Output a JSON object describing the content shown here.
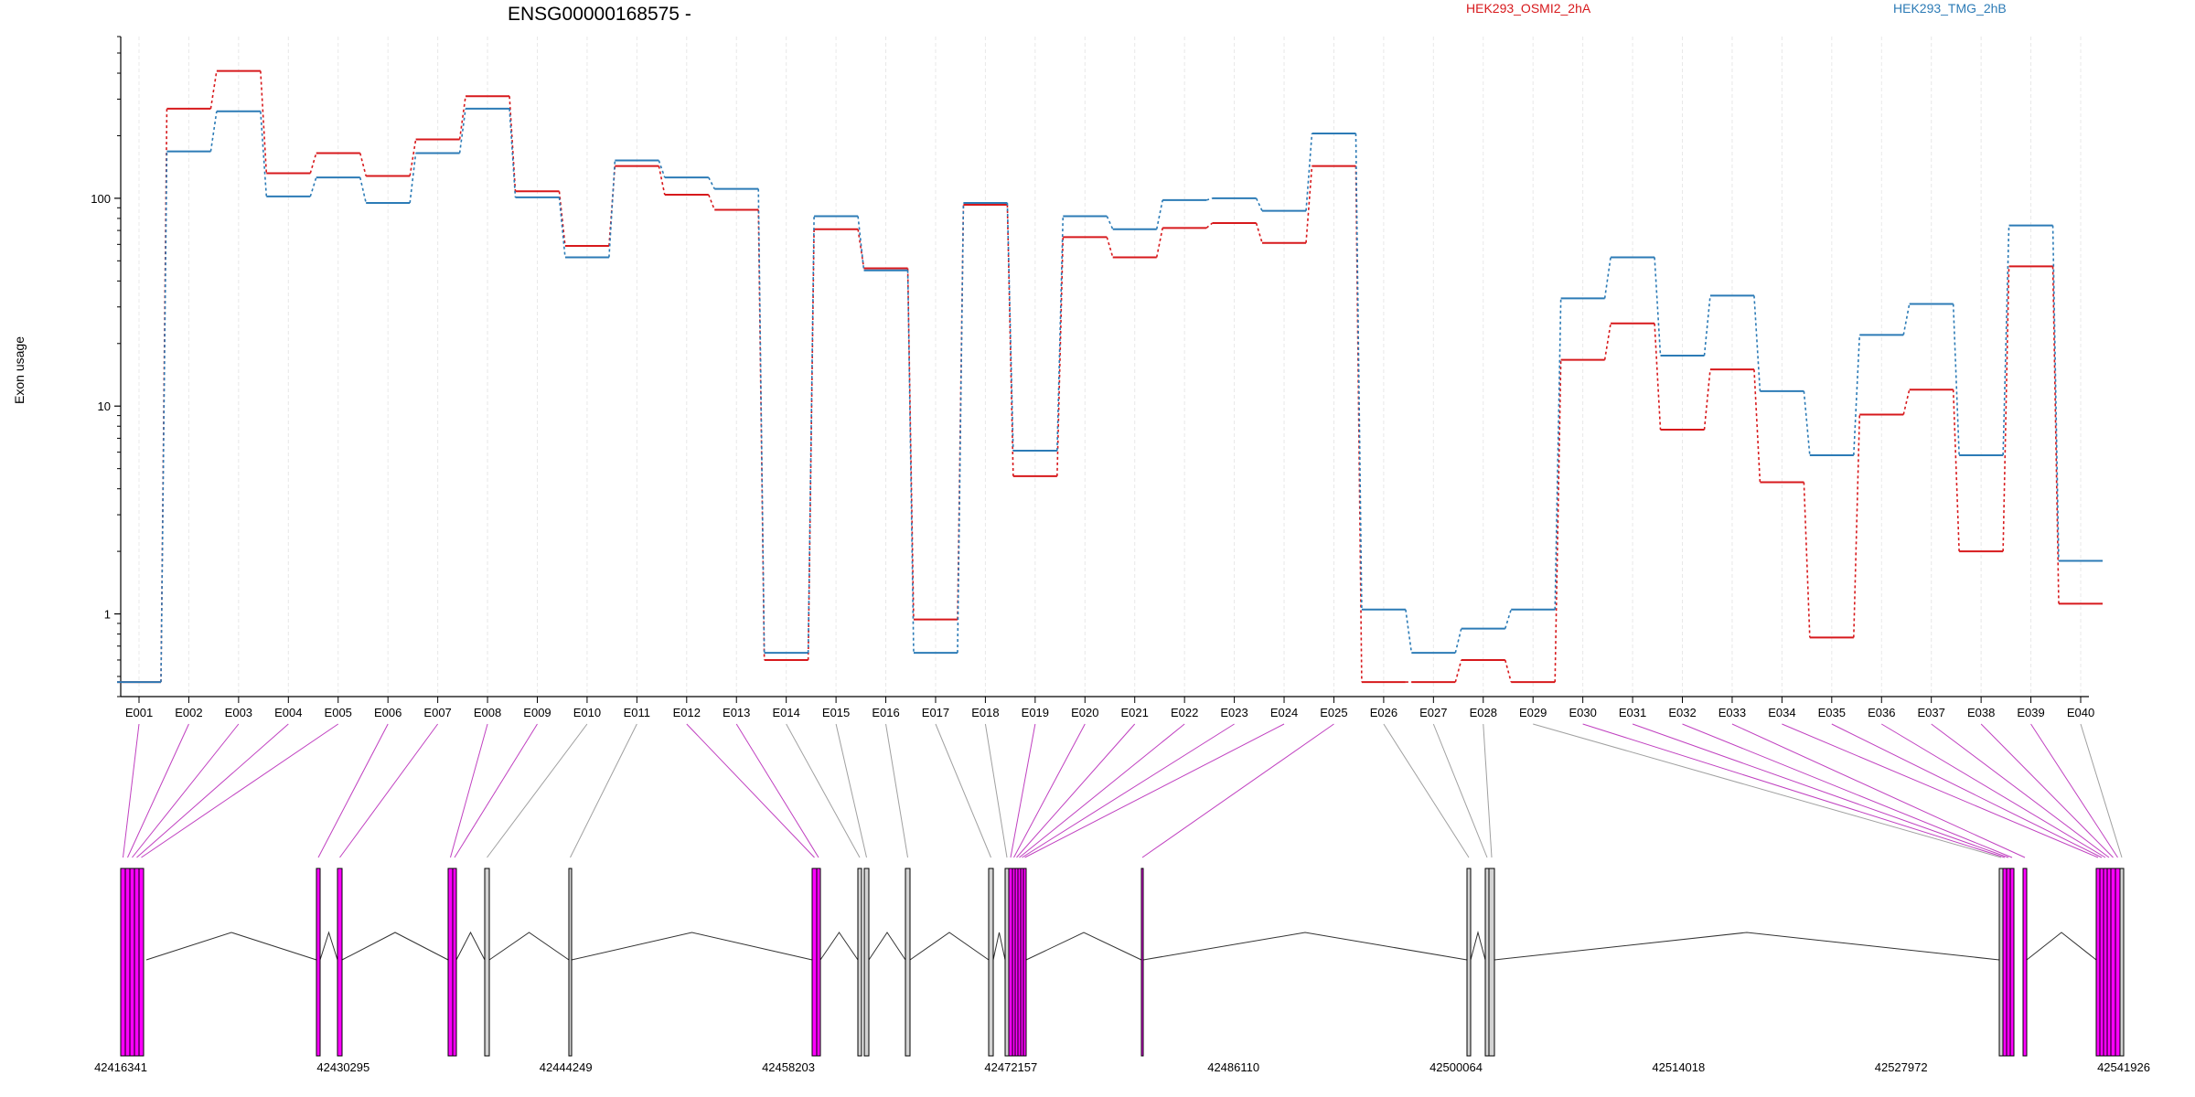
{
  "chart_data": {
    "type": "line",
    "title": "ENSG00000168575 -",
    "ylabel": "Exon usage",
    "yscale": "log",
    "ylim": [
      0.4,
      600
    ],
    "yticks": [
      {
        "value": 1,
        "label": "1"
      },
      {
        "value": 10,
        "label": "10"
      },
      {
        "value": 100,
        "label": "100"
      }
    ],
    "categories": [
      "E001",
      "E002",
      "E003",
      "E004",
      "E005",
      "E006",
      "E007",
      "E008",
      "E009",
      "E010",
      "E011",
      "E012",
      "E013",
      "E014",
      "E015",
      "E016",
      "E017",
      "E018",
      "E019",
      "E020",
      "E021",
      "E022",
      "E023",
      "E024",
      "E025",
      "E026",
      "E027",
      "E028",
      "E029",
      "E030",
      "E031",
      "E032",
      "E033",
      "E034",
      "E035",
      "E036",
      "E037",
      "E038",
      "E039",
      "E040"
    ],
    "series": [
      {
        "name": "HEK293_OSMI2_2hA",
        "color": "#d7191c",
        "values": [
          0.47,
          270,
          410,
          132,
          165,
          128,
          192,
          310,
          108,
          59,
          143,
          104,
          88,
          0.6,
          71,
          46,
          0.94,
          93,
          4.6,
          65,
          52,
          72,
          76,
          61,
          143,
          0.47,
          0.47,
          0.6,
          0.47,
          16.7,
          25,
          7.7,
          15,
          4.3,
          0.77,
          9.1,
          12,
          2,
          47,
          1.12
        ]
      },
      {
        "name": "HEK293_TMG_2hB",
        "color": "#2c7bb6",
        "values": [
          0.47,
          168,
          262,
          102,
          126,
          95,
          165,
          270,
          101,
          52,
          152,
          126,
          111,
          0.65,
          82,
          45,
          0.65,
          95,
          6.1,
          82,
          71,
          98,
          100,
          87,
          205,
          1.05,
          0.65,
          0.85,
          1.05,
          33,
          52,
          17.5,
          34,
          11.8,
          5.8,
          22,
          31,
          5.8,
          74,
          1.8
        ]
      }
    ],
    "gene_coordinates": [
      "42416341",
      "42430295",
      "42444249",
      "42458203",
      "42472157",
      "42486110",
      "42500064",
      "42514018",
      "42527972",
      "42541926"
    ],
    "exon_colors": {
      "differential": "#ff00ff",
      "unchanged": "#d3d3d3",
      "outline": "#000000"
    },
    "differential_exons": [
      "E001",
      "E002",
      "E003",
      "E004",
      "E005",
      "E006",
      "E007",
      "E008",
      "E009",
      "E012",
      "E013",
      "E019",
      "E020",
      "E021",
      "E022",
      "E023",
      "E024",
      "E025",
      "E030",
      "E031",
      "E032",
      "E033",
      "E034",
      "E035",
      "E036",
      "E037",
      "E038",
      "E039"
    ]
  }
}
